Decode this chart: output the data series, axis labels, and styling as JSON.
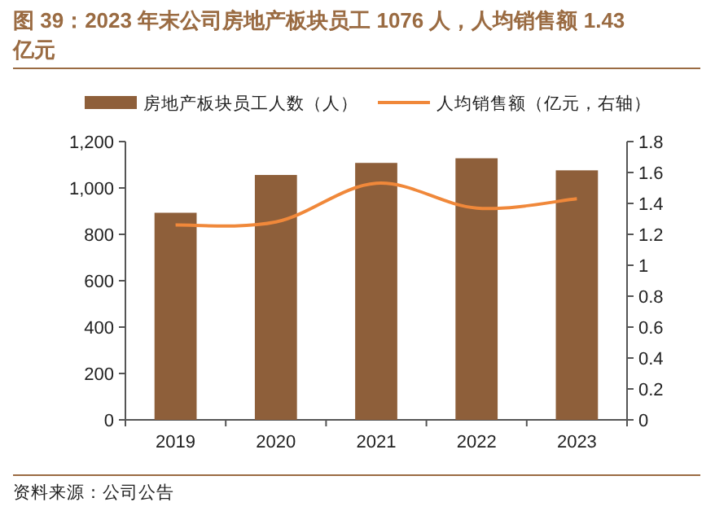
{
  "chart_data": {
    "type": "bar",
    "title": "图 39：2023 年末公司房地产板块员工 1076 人，人均销售额 1.43 亿元",
    "categories": [
      "2019",
      "2020",
      "2021",
      "2022",
      "2023"
    ],
    "series": [
      {
        "name": "房地产板块员工人数（人）",
        "color": "#8e5f3a",
        "values": [
          893,
          1056,
          1108,
          1128,
          1076
        ]
      },
      {
        "name": "人均销售额（亿元，右轴）",
        "type": "line",
        "axis": "y2",
        "color": "#f0883a",
        "values": [
          1.26,
          1.28,
          1.53,
          1.37,
          1.43
        ]
      }
    ],
    "ylim": [
      0,
      1200
    ],
    "yticks": [
      0,
      200,
      400,
      600,
      800,
      {
        "value": 1000,
        "label": "1,000"
      },
      {
        "value": 1200,
        "label": "1,200"
      }
    ],
    "y2lim": [
      0,
      1.8
    ],
    "y2ticks": [
      0,
      0.2,
      0.4,
      0.6,
      0.8,
      1,
      1.2,
      1.4,
      1.6,
      1.8
    ],
    "legend": "top",
    "grid": false,
    "annotations": [
      "资料来源：公司公告"
    ]
  }
}
